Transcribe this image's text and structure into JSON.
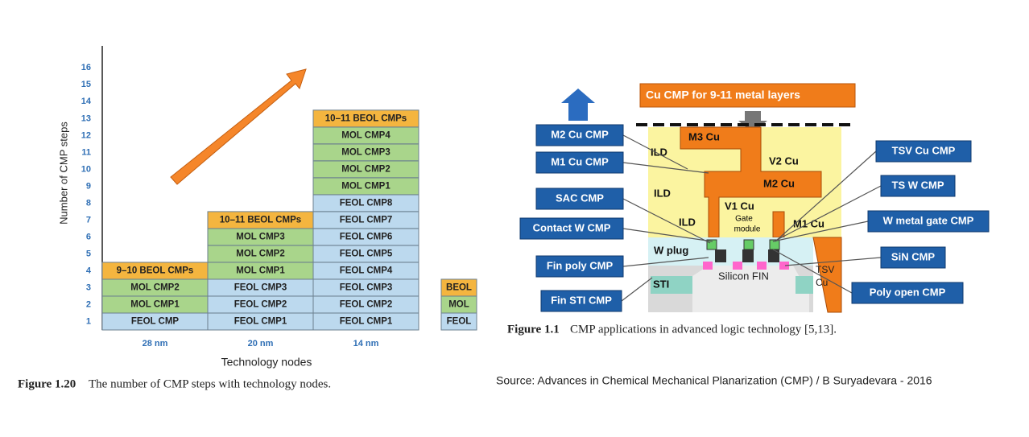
{
  "chart_data": {
    "type": "stacked-blocks",
    "x_label": "Technology nodes",
    "y_label": "Number of CMP steps",
    "categories": [
      "28 nm",
      "20 nm",
      "14 nm"
    ],
    "series": [
      {
        "name": "FEOL",
        "color": "#bcd9ee",
        "values": [
          1,
          3,
          8
        ],
        "labels": [
          [
            "FEOL CMP"
          ],
          [
            "FEOL CMP1",
            "FEOL CMP2",
            "FEOL CMP3"
          ],
          [
            "FEOL CMP1",
            "FEOL CMP2",
            "FEOL CMP3",
            "FEOL CMP4",
            "FEOL CMP5",
            "FEOL CMP6",
            "FEOL CMP7",
            "FEOL CMP8"
          ]
        ]
      },
      {
        "name": "MOL",
        "color": "#a9d58b",
        "values": [
          2,
          3,
          4
        ],
        "labels": [
          [
            "MOL CMP1",
            "MOL CMP2"
          ],
          [
            "MOL CMP1",
            "MOL CMP2",
            "MOL CMP3"
          ],
          [
            "MOL CMP1",
            "MOL CMP2",
            "MOL CMP3",
            "MOL CMP4"
          ]
        ]
      },
      {
        "name": "BEOL",
        "color": "#f4b53f",
        "values": [
          1,
          1,
          1
        ],
        "labels": [
          [
            "9–10 BEOL CMPs"
          ],
          [
            "10–11 BEOL CMPs"
          ],
          [
            "10–11 BEOL CMPs"
          ]
        ]
      }
    ],
    "ylim": [
      0.5,
      17.3
    ],
    "yticks": [
      1,
      2,
      3,
      4,
      5,
      6,
      7,
      8,
      9,
      10,
      11,
      12,
      13,
      14,
      15,
      16
    ],
    "caption": {
      "label": "Figure 1.20",
      "text": "The number of CMP steps with technology nodes."
    }
  },
  "diagram": {
    "banner": "Cu CMP for 9-11 metal layers",
    "callouts_left": [
      "M2 Cu CMP",
      "M1 Cu CMP",
      "SAC CMP",
      "Contact W CMP",
      "Fin poly CMP",
      "Fin STI CMP"
    ],
    "callouts_right": [
      "TSV Cu CMP",
      "TS W CMP",
      "W metal gate CMP",
      "SiN CMP",
      "Poly open CMP"
    ],
    "labels": {
      "ild": "ILD",
      "m3": "M3 Cu",
      "v2": "V2 Cu",
      "m2": "M2 Cu",
      "v1": "V1 Cu",
      "gate_module": [
        "Gate",
        "module"
      ],
      "m1": "M1 Cu",
      "w_plug": "W plug",
      "sti": "STI",
      "fin": "Silicon FIN",
      "tsv": [
        "TSV",
        "Cu"
      ]
    },
    "caption": {
      "label": "Figure 1.1",
      "text": "CMP applications in advanced logic technology [5,13]."
    }
  },
  "source": "Source: Advances in Chemical Mechanical Planarization (CMP) / B Suryadevara - 2016"
}
